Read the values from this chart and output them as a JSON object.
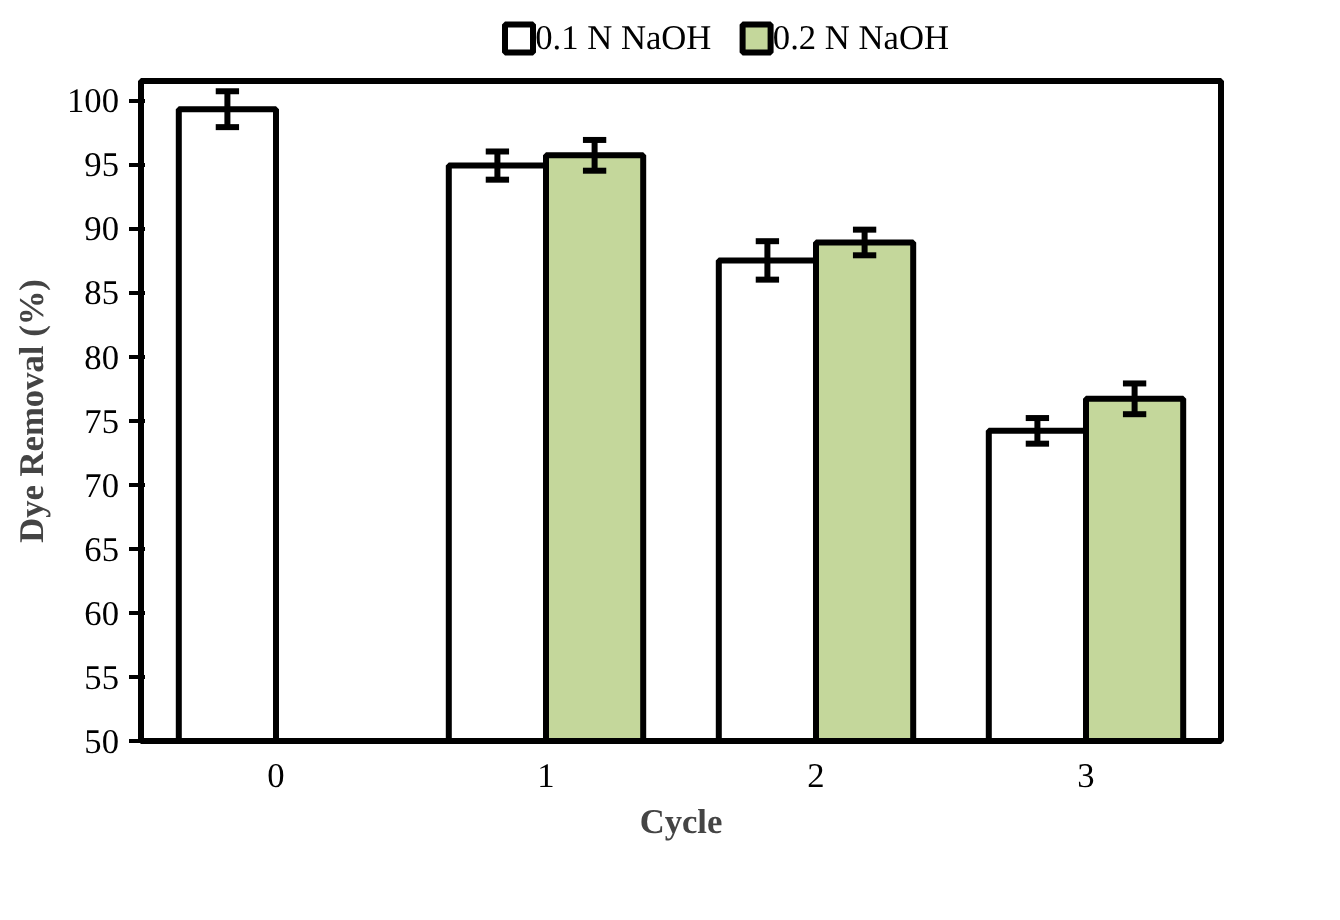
{
  "chart_data": {
    "type": "bar",
    "xlabel": "Cycle",
    "ylabel": "Dye Removal (%)",
    "categories": [
      "0",
      "1",
      "2",
      "3"
    ],
    "series": [
      {
        "name": "0.1 N NaOH",
        "color": "#ffffff",
        "values": [
          99.3,
          94.9,
          87.5,
          74.2
        ],
        "errors": [
          1.4,
          1.1,
          1.5,
          1.0
        ]
      },
      {
        "name": "0.2 N NaOH",
        "color": "#c4d79b",
        "values": [
          null,
          95.7,
          88.9,
          76.7
        ],
        "errors": [
          null,
          1.2,
          1.0,
          1.2
        ]
      }
    ],
    "ylim": [
      50,
      101.5
    ],
    "yticks": [
      50,
      55,
      60,
      65,
      70,
      75,
      80,
      85,
      90,
      95,
      100
    ],
    "grid": false,
    "legend": "top"
  }
}
